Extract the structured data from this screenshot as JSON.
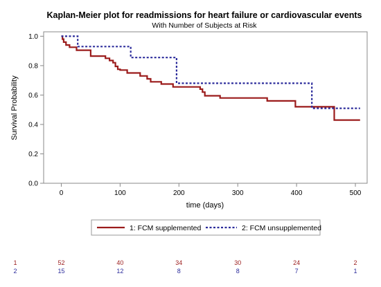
{
  "chart_data": {
    "type": "line",
    "title": "Kaplan-Meier plot for readmissions for heart failure or cardiovascular events",
    "subtitle": "With Number of Subjects at Risk",
    "xlabel": "time (days)",
    "ylabel": "Survival Probability",
    "xlim": [
      -30,
      520
    ],
    "ylim": [
      0.0,
      1.03
    ],
    "x_ticks": [
      0,
      100,
      200,
      300,
      400,
      500
    ],
    "y_ticks": [
      0.0,
      0.2,
      0.4,
      0.6,
      0.8,
      1.0
    ],
    "y_tick_labels": [
      "0.0",
      "0.2",
      "0.4",
      "0.6",
      "0.8",
      "1.0"
    ],
    "grid": false,
    "legend_position": "bottom",
    "series": [
      {
        "name": "1: FCM supplemented",
        "color": "#9b1b1b",
        "style": "solid",
        "step_x": [
          0,
          2,
          4,
          8,
          14,
          26,
          50,
          75,
          82,
          88,
          92,
          96,
          100,
          112,
          134,
          146,
          152,
          170,
          190,
          236,
          240,
          244,
          270,
          350,
          398,
          464,
          508
        ],
        "step_y": [
          1.0,
          0.98,
          0.96,
          0.94,
          0.925,
          0.905,
          0.865,
          0.85,
          0.835,
          0.82,
          0.795,
          0.775,
          0.77,
          0.75,
          0.73,
          0.71,
          0.69,
          0.675,
          0.655,
          0.64,
          0.62,
          0.595,
          0.58,
          0.56,
          0.52,
          0.43,
          0.43
        ]
      },
      {
        "name": "2: FCM unsupplemented",
        "color": "#2b2b9b",
        "style": "dashed",
        "step_x": [
          0,
          28,
          118,
          196,
          426,
          508
        ],
        "step_y": [
          1.0,
          0.93,
          0.855,
          0.68,
          0.51,
          0.51
        ]
      }
    ],
    "at_risk": {
      "times": [
        0,
        100,
        200,
        300,
        400,
        500
      ],
      "rows": [
        {
          "label": "1",
          "color": "#9b1b1b",
          "counts": [
            "52",
            "40",
            "34",
            "30",
            "24",
            "2"
          ]
        },
        {
          "label": "2",
          "color": "#2b2b9b",
          "counts": [
            "15",
            "12",
            "8",
            "8",
            "7",
            "1"
          ]
        }
      ]
    }
  }
}
